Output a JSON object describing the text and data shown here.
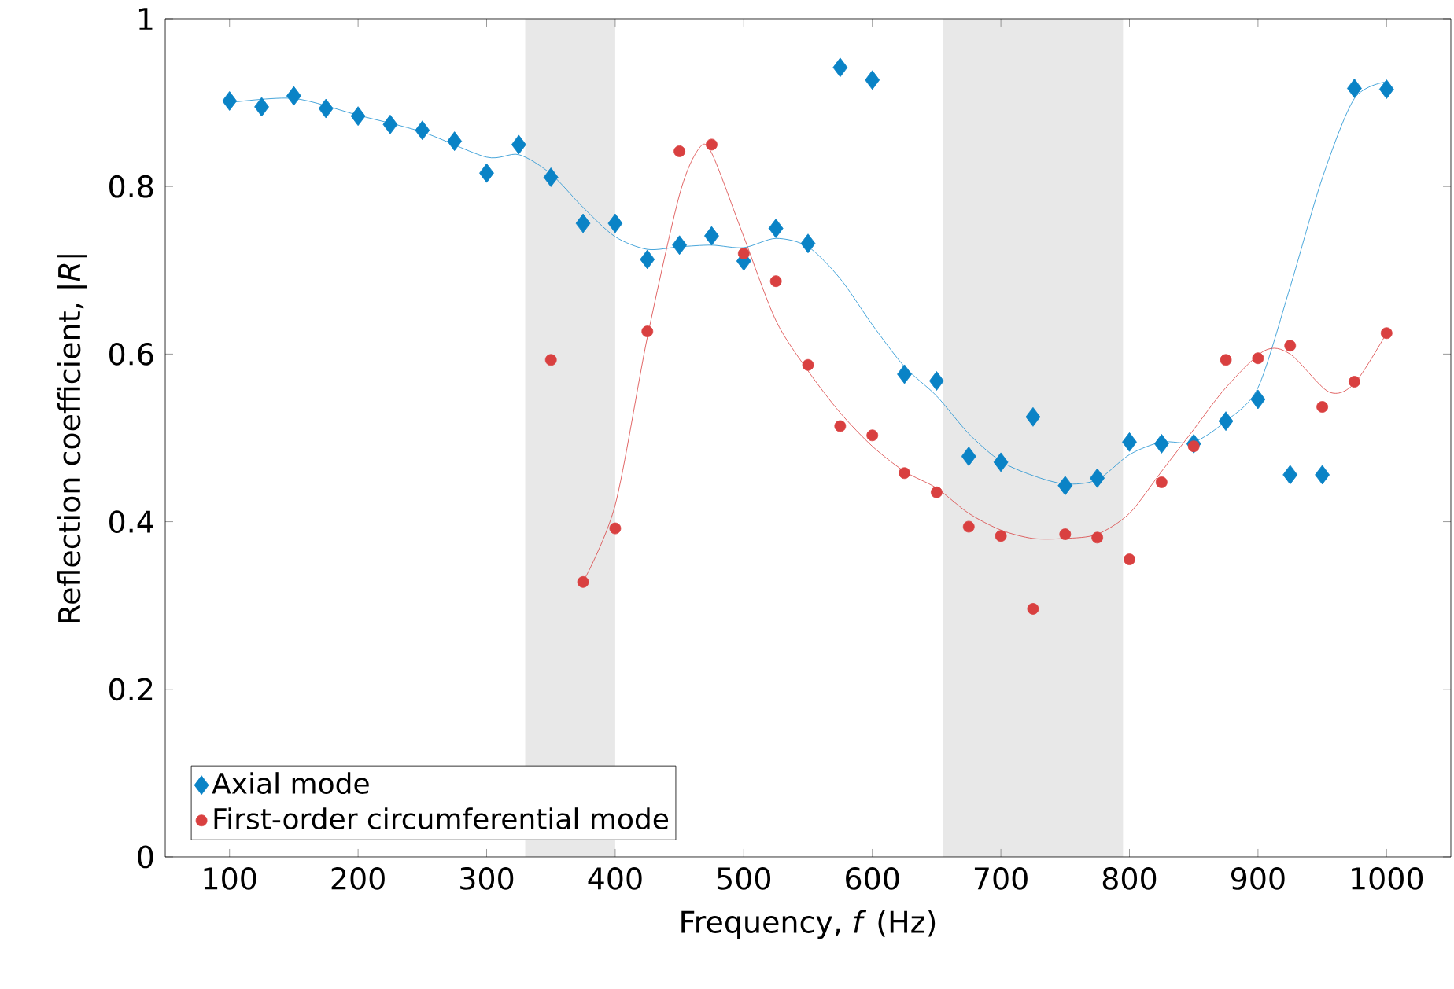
{
  "chart_data": {
    "type": "scatter",
    "xlabel": "Frequency, *f* (Hz)",
    "ylabel": "Reflection coefficient, |*R*|",
    "xlim": [
      50,
      1050
    ],
    "ylim": [
      0,
      1
    ],
    "xticks": [
      100,
      200,
      300,
      400,
      500,
      600,
      700,
      800,
      900,
      1000
    ],
    "yticks": [
      0,
      0.2,
      0.4,
      0.6,
      0.8,
      1
    ],
    "grid": false,
    "legend": "bottom left",
    "bands": [
      {
        "axis": "x",
        "from": 330,
        "to": 400,
        "color": "#e8e8e8"
      },
      {
        "axis": "x",
        "from": 655,
        "to": 795,
        "color": "#e8e8e8"
      }
    ],
    "series": [
      {
        "type": "line",
        "color": "#1a8fd0",
        "marker": "none",
        "line_style": "solid",
        "x": [
          100,
          150,
          200,
          250,
          300,
          325,
          350,
          375,
          400,
          425,
          450,
          475,
          500,
          525,
          550,
          575,
          600,
          625,
          650,
          675,
          700,
          725,
          750,
          775,
          800,
          825,
          850,
          875,
          900,
          925,
          950,
          975,
          1000
        ],
        "values": [
          0.9,
          0.905,
          0.885,
          0.865,
          0.835,
          0.838,
          0.815,
          0.775,
          0.74,
          0.725,
          0.728,
          0.73,
          0.727,
          0.738,
          0.728,
          0.69,
          0.635,
          0.585,
          0.55,
          0.505,
          0.472,
          0.455,
          0.445,
          0.45,
          0.48,
          0.495,
          0.495,
          0.52,
          0.56,
          0.68,
          0.81,
          0.905,
          0.925
        ]
      },
      {
        "type": "line",
        "color": "#d94040",
        "marker": "none",
        "line_style": "solid",
        "x": [
          375,
          400,
          425,
          450,
          465,
          475,
          500,
          525,
          550,
          575,
          600,
          625,
          650,
          675,
          700,
          725,
          750,
          775,
          800,
          825,
          850,
          875,
          905,
          925,
          955,
          975,
          1000
        ],
        "values": [
          0.328,
          0.42,
          0.62,
          0.79,
          0.845,
          0.84,
          0.74,
          0.64,
          0.58,
          0.53,
          0.49,
          0.46,
          0.44,
          0.41,
          0.39,
          0.38,
          0.38,
          0.385,
          0.41,
          0.46,
          0.51,
          0.56,
          0.604,
          0.6,
          0.555,
          0.565,
          0.625
        ]
      },
      {
        "name": "Axial mode",
        "color": "#0a83c6",
        "marker": "diamond",
        "x": [
          100,
          125,
          150,
          175,
          200,
          225,
          250,
          275,
          300,
          325,
          350,
          375,
          400,
          425,
          450,
          475,
          500,
          525,
          550,
          575,
          600,
          625,
          650,
          675,
          700,
          725,
          750,
          775,
          800,
          825,
          850,
          875,
          900,
          925,
          950,
          975,
          1000
        ],
        "values": [
          0.902,
          0.895,
          0.908,
          0.893,
          0.884,
          0.874,
          0.867,
          0.854,
          0.816,
          0.85,
          0.811,
          0.756,
          0.756,
          0.713,
          0.73,
          0.741,
          0.711,
          0.75,
          0.732,
          0.942,
          0.927,
          0.576,
          0.568,
          0.478,
          0.471,
          0.525,
          0.443,
          0.452,
          0.495,
          0.493,
          0.493,
          0.52,
          0.546,
          0.456,
          0.456,
          0.917,
          0.916
        ]
      },
      {
        "name": "First-order circumferential mode",
        "color": "#d94040",
        "marker": "circle",
        "x": [
          350,
          375,
          400,
          425,
          450,
          475,
          500,
          525,
          550,
          575,
          600,
          625,
          650,
          675,
          700,
          725,
          750,
          775,
          800,
          825,
          850,
          875,
          900,
          925,
          950,
          975,
          1000
        ],
        "values": [
          0.593,
          0.328,
          0.392,
          0.627,
          0.842,
          0.85,
          0.72,
          0.687,
          0.587,
          0.514,
          0.503,
          0.458,
          0.435,
          0.394,
          0.383,
          0.296,
          0.385,
          0.381,
          0.355,
          0.447,
          0.49,
          0.593,
          0.595,
          0.61,
          0.537,
          0.567,
          0.625
        ]
      }
    ]
  }
}
